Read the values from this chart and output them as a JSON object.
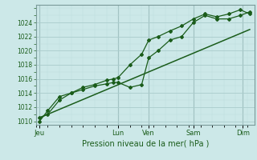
{
  "title": "",
  "xlabel": "Pression niveau de la mer( hPa )",
  "bg_color": "#cce8e8",
  "grid_major_color": "#aacccc",
  "grid_minor_color": "#bbdddd",
  "line_color": "#1a5c1a",
  "vline_color": "#7a9a9a",
  "ylim": [
    1009.5,
    1026.5
  ],
  "yticks": [
    1010,
    1012,
    1014,
    1016,
    1018,
    1020,
    1022,
    1024
  ],
  "xlim": [
    0,
    9.3
  ],
  "xtick_labels": [
    "Jeu",
    "Lun",
    "Ven",
    "Sam",
    "Dim"
  ],
  "xtick_positions": [
    0.15,
    3.5,
    4.8,
    6.7,
    8.8
  ],
  "vline_positions": [
    0.15,
    3.5,
    4.8,
    6.7,
    8.8
  ],
  "series1_x": [
    0.15,
    0.5,
    1.0,
    1.5,
    2.0,
    2.5,
    3.0,
    3.3,
    3.5,
    4.0,
    4.5,
    4.8,
    5.2,
    5.7,
    6.2,
    6.7,
    7.2,
    7.7,
    8.2,
    8.7,
    9.1
  ],
  "series1_y": [
    1010.5,
    1011.0,
    1013.0,
    1014.0,
    1014.5,
    1015.0,
    1015.3,
    1015.5,
    1015.5,
    1014.8,
    1015.2,
    1019.0,
    1020.0,
    1021.5,
    1022.0,
    1024.0,
    1025.0,
    1024.5,
    1024.5,
    1025.0,
    1025.5
  ],
  "series2_x": [
    0.15,
    0.5,
    1.0,
    1.5,
    2.0,
    2.5,
    3.0,
    3.3,
    3.5,
    4.0,
    4.5,
    4.8,
    5.2,
    5.7,
    6.2,
    6.7,
    7.2,
    7.7,
    8.2,
    8.7,
    9.1
  ],
  "series2_y": [
    1010.0,
    1011.5,
    1013.5,
    1014.0,
    1014.8,
    1015.2,
    1015.8,
    1016.0,
    1016.2,
    1018.0,
    1019.5,
    1021.5,
    1022.0,
    1022.8,
    1023.5,
    1024.5,
    1025.2,
    1024.8,
    1025.2,
    1025.8,
    1025.2
  ],
  "trend_x": [
    0.15,
    9.1
  ],
  "trend_y": [
    1010.5,
    1023.0
  ]
}
